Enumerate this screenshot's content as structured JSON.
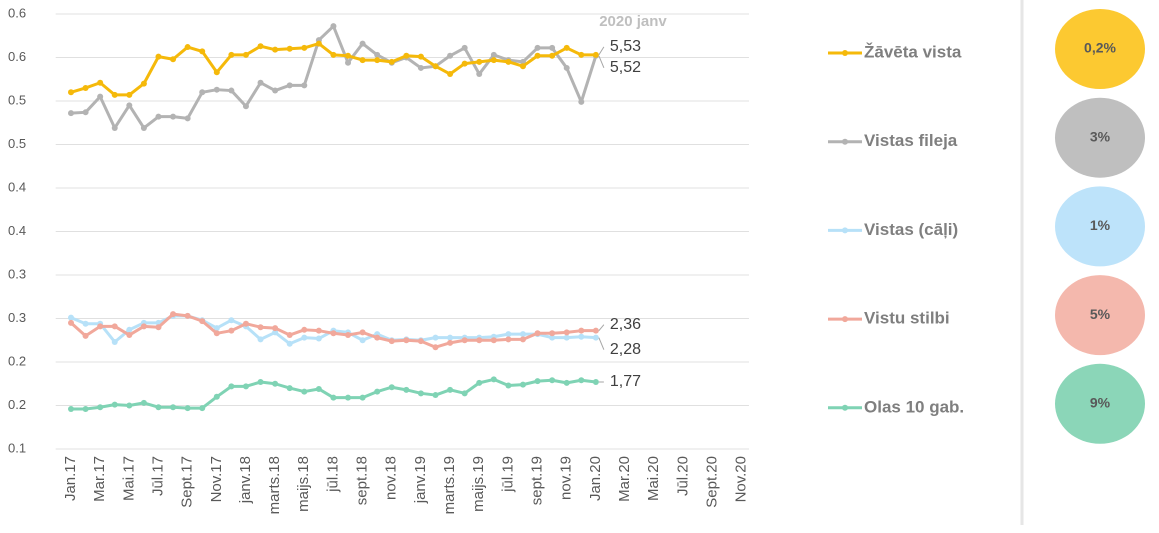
{
  "chart_data": {
    "type": "line",
    "annotation": "2020 janv",
    "categories": [
      "Jan.17",
      null,
      "Mar.17",
      null,
      "Mai.17",
      null,
      "Jūl.17",
      null,
      "Sept.17",
      null,
      "Nov.17",
      null,
      "janv.18",
      null,
      "marts.18",
      null,
      "maijs.18",
      null,
      "jūl.18",
      null,
      "sept.18",
      null,
      "nov.18",
      null,
      "janv.19",
      null,
      "marts.19",
      null,
      "maijs.19",
      null,
      "jūl.19",
      null,
      "sept.19",
      null,
      "nov.19",
      null,
      "Jan.20",
      null,
      "Mar.20",
      null,
      "Mai.20",
      null,
      "Jūl.20",
      null,
      "Sept.20",
      null,
      "Nov.20"
    ],
    "ylim": [
      0.1,
      0.6
    ],
    "yticks": [
      0.1,
      {
        "value": 0.15,
        "label": "0.2"
      },
      0.2,
      {
        "value": 0.25,
        "label": "0.3"
      },
      0.3,
      {
        "value": 0.35,
        "label": "0.4"
      },
      0.4,
      {
        "value": 0.45,
        "label": "0.5"
      },
      0.5,
      {
        "value": 0.55,
        "label": "0.6"
      },
      0.6
    ],
    "grid": true,
    "series": [
      {
        "name": "Vistas fileja",
        "color": "#b3b3b3",
        "badge_color": "#bfbfbf",
        "badge": "3%",
        "values": [
          0.486,
          0.487,
          0.505,
          0.469,
          0.495,
          0.469,
          0.482,
          0.482,
          0.48,
          0.51,
          0.513,
          0.512,
          0.494,
          0.521,
          0.512,
          0.518,
          0.518,
          0.57,
          0.586,
          0.544,
          0.566,
          0.553,
          0.544,
          0.55,
          0.538,
          0.54,
          0.552,
          0.561,
          0.531,
          0.553,
          0.547,
          0.545,
          0.561,
          0.561,
          0.538,
          0.499,
          0.552,
          null,
          null,
          null,
          null,
          null,
          null,
          null,
          null,
          null,
          null
        ],
        "value_labels": [
          null,
          null,
          null,
          null,
          null,
          null,
          null,
          null,
          null,
          null,
          null,
          null,
          null,
          null,
          null,
          null,
          null,
          null,
          null,
          null,
          null,
          null,
          null,
          null,
          null,
          null,
          null,
          null,
          null,
          null,
          null,
          null,
          null,
          null,
          null,
          null,
          "5,52",
          null,
          null,
          null,
          null,
          null,
          null,
          null,
          null,
          null,
          null
        ]
      },
      {
        "name": "Žāvēta vista",
        "color": "#f5b90a",
        "badge_color": "#fcc931",
        "badge": "0,2%",
        "values": [
          0.51,
          0.515,
          0.521,
          0.507,
          0.507,
          0.52,
          0.551,
          0.548,
          0.562,
          0.557,
          0.533,
          0.553,
          0.553,
          0.563,
          0.559,
          0.56,
          0.561,
          0.566,
          0.553,
          0.552,
          0.547,
          0.547,
          0.545,
          0.552,
          0.551,
          0.54,
          0.531,
          0.543,
          0.545,
          0.547,
          0.545,
          0.54,
          0.552,
          0.552,
          0.561,
          0.553,
          0.553,
          null,
          null,
          null,
          null,
          null,
          null,
          null,
          null,
          null,
          null
        ],
        "value_labels": [
          null,
          null,
          null,
          null,
          null,
          null,
          null,
          null,
          null,
          null,
          null,
          null,
          null,
          null,
          null,
          null,
          null,
          null,
          null,
          null,
          null,
          null,
          null,
          null,
          null,
          null,
          null,
          null,
          null,
          null,
          null,
          null,
          null,
          null,
          null,
          null,
          "5,53",
          null,
          null,
          null,
          null,
          null,
          null,
          null,
          null,
          null,
          null
        ]
      },
      {
        "name": "Vistas (cāļi)",
        "color": "#b7e1f8",
        "badge_color": "#bde3fa",
        "badge": "1%",
        "values": [
          0.251,
          0.244,
          0.244,
          0.223,
          0.237,
          0.245,
          0.245,
          0.253,
          0.253,
          0.248,
          0.239,
          0.248,
          0.241,
          0.226,
          0.234,
          0.221,
          0.228,
          0.227,
          0.236,
          0.234,
          0.225,
          0.232,
          0.225,
          0.226,
          0.225,
          0.228,
          0.228,
          0.228,
          0.228,
          0.229,
          0.232,
          0.232,
          0.232,
          0.228,
          0.228,
          0.229,
          0.228,
          null,
          null,
          null,
          null,
          null,
          null,
          null,
          null,
          null,
          null
        ],
        "value_labels": [
          null,
          null,
          null,
          null,
          null,
          null,
          null,
          null,
          null,
          null,
          null,
          null,
          null,
          null,
          null,
          null,
          null,
          null,
          null,
          null,
          null,
          null,
          null,
          null,
          null,
          null,
          null,
          null,
          null,
          null,
          null,
          null,
          null,
          null,
          null,
          null,
          "2,28",
          null,
          null,
          null,
          null,
          null,
          null,
          null,
          null,
          null,
          null
        ]
      },
      {
        "name": "Vistu stilbi",
        "color": "#f1a89b",
        "badge_color": "#f4b8ad",
        "badge": "5%",
        "values": [
          0.245,
          0.23,
          0.241,
          0.241,
          0.231,
          0.241,
          0.24,
          0.255,
          0.253,
          0.247,
          0.233,
          0.236,
          0.244,
          0.24,
          0.239,
          0.231,
          0.237,
          0.236,
          0.233,
          0.231,
          0.234,
          0.228,
          0.224,
          0.225,
          0.224,
          0.217,
          0.222,
          0.225,
          0.225,
          0.225,
          0.226,
          0.226,
          0.233,
          0.233,
          0.234,
          0.236,
          0.236,
          null,
          null,
          null,
          null,
          null,
          null,
          null,
          null,
          null,
          null
        ],
        "value_labels": [
          null,
          null,
          null,
          null,
          null,
          null,
          null,
          null,
          null,
          null,
          null,
          null,
          null,
          null,
          null,
          null,
          null,
          null,
          null,
          null,
          null,
          null,
          null,
          null,
          null,
          null,
          null,
          null,
          null,
          null,
          null,
          null,
          null,
          null,
          null,
          null,
          "2,36",
          null,
          null,
          null,
          null,
          null,
          null,
          null,
          null,
          null,
          null
        ]
      },
      {
        "name": "Olas 10 gab.",
        "color": "#7fd3b4",
        "badge_color": "#8bd6b8",
        "badge": "9%",
        "values": [
          0.146,
          0.146,
          0.148,
          0.151,
          0.15,
          0.153,
          0.148,
          0.148,
          0.147,
          0.147,
          0.16,
          0.172,
          0.172,
          0.177,
          0.175,
          0.17,
          0.166,
          0.169,
          0.159,
          0.159,
          0.159,
          0.166,
          0.171,
          0.168,
          0.164,
          0.162,
          0.168,
          0.164,
          0.176,
          0.18,
          0.173,
          0.174,
          0.178,
          0.179,
          0.176,
          0.179,
          0.177,
          null,
          null,
          null,
          null,
          null,
          null,
          null,
          null,
          null,
          null
        ],
        "value_labels": [
          null,
          null,
          null,
          null,
          null,
          null,
          null,
          null,
          null,
          null,
          null,
          null,
          null,
          null,
          null,
          null,
          null,
          null,
          null,
          null,
          null,
          null,
          null,
          null,
          null,
          null,
          null,
          null,
          null,
          null,
          null,
          null,
          null,
          null,
          null,
          null,
          "1,77",
          null,
          null,
          null,
          null,
          null,
          null,
          null,
          null,
          null,
          null
        ]
      }
    ]
  }
}
